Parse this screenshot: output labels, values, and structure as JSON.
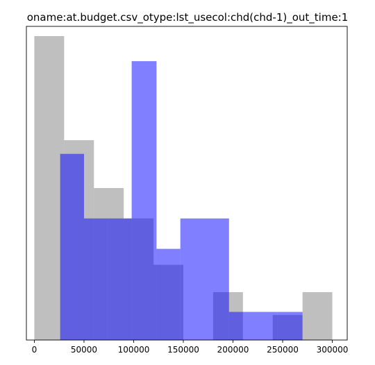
{
  "chart_data": {
    "type": "histogram",
    "title": "oname:at.budget.csv_otype:lst_usecol:chd(chd-1)_out_time:1",
    "xlabel": "",
    "ylabel": "",
    "xlim": [
      -8000,
      315000
    ],
    "ylim": [
      0,
      1.0
    ],
    "x_ticks": [
      0,
      50000,
      100000,
      150000,
      200000,
      250000,
      300000
    ],
    "x_tick_labels": [
      "0",
      "50000",
      "100000",
      "150000",
      "200000",
      "250000",
      "300000"
    ],
    "y_axis_visible": false,
    "grid": false,
    "series": [
      {
        "color": "#808080",
        "opacity": 0.5,
        "bins": [
          {
            "x0": 0,
            "x1": 30000,
            "value": 1.0
          },
          {
            "x0": 30000,
            "x1": 60000,
            "value": 0.6575
          },
          {
            "x0": 60000,
            "x1": 90000,
            "value": 0.5
          },
          {
            "x0": 90000,
            "x1": 120000,
            "value": 0.4
          },
          {
            "x0": 120000,
            "x1": 150000,
            "value": 0.2475
          },
          {
            "x0": 150000,
            "x1": 180000,
            "value": 0.0
          },
          {
            "x0": 180000,
            "x1": 210000,
            "value": 0.1575
          },
          {
            "x0": 210000,
            "x1": 240000,
            "value": 0.0
          },
          {
            "x0": 240000,
            "x1": 270000,
            "value": 0.0825
          },
          {
            "x0": 270000,
            "x1": 300000,
            "value": 0.1575
          }
        ]
      },
      {
        "color": "#0000ff",
        "opacity": 0.5,
        "bins": [
          {
            "x0": 26000,
            "x1": 50000,
            "value": 0.6125
          },
          {
            "x0": 50000,
            "x1": 74000,
            "value": 0.4
          },
          {
            "x0": 74000,
            "x1": 98000,
            "value": 0.4
          },
          {
            "x0": 98000,
            "x1": 123000,
            "value": 0.9175
          },
          {
            "x0": 123000,
            "x1": 147000,
            "value": 0.3
          },
          {
            "x0": 147000,
            "x1": 172000,
            "value": 0.4
          },
          {
            "x0": 172000,
            "x1": 196000,
            "value": 0.4
          },
          {
            "x0": 196000,
            "x1": 221000,
            "value": 0.0925
          },
          {
            "x0": 221000,
            "x1": 245000,
            "value": 0.0925
          },
          {
            "x0": 245000,
            "x1": 270000,
            "value": 0.0925
          }
        ]
      }
    ]
  }
}
